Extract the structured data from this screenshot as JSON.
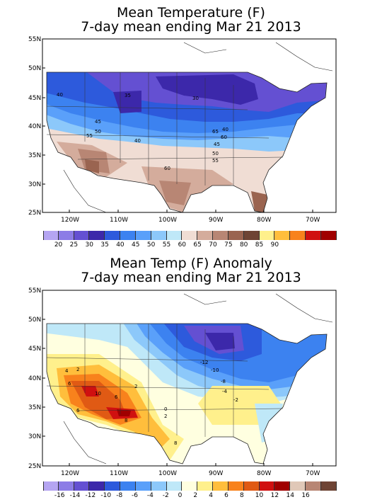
{
  "panels": [
    {
      "title_line1": "Mean Temperature (F)",
      "title_line2": "7-day mean ending Mar 21 2013",
      "lat_labels": [
        "55N",
        "50N",
        "45N",
        "40N",
        "35N",
        "30N",
        "25N"
      ],
      "lon_labels": [
        "120W",
        "110W",
        "100W",
        "90W",
        "80W",
        "70W"
      ],
      "contour_labels": [
        "40",
        "35",
        "30",
        "45",
        "50",
        "55",
        "60",
        "65",
        "40",
        "40",
        "45",
        "50",
        "55",
        "60"
      ],
      "colorbar_labels": [
        "20",
        "25",
        "30",
        "35",
        "40",
        "45",
        "50",
        "55",
        "60",
        "65",
        "70",
        "75",
        "80",
        "85",
        "90"
      ],
      "colors": [
        "#b5a5f2",
        "#8c7ce6",
        "#6450d2",
        "#3c28aa",
        "#2d5adc",
        "#3c82f0",
        "#5aa0fa",
        "#8cc8fa",
        "#bfe8f8",
        "#f0ddd4",
        "#d4ac9c",
        "#b88674",
        "#9a6450",
        "#6e4434",
        "#fff08c",
        "#ffbe3c",
        "#f8821c",
        "#d01010",
        "#a00000"
      ]
    },
    {
      "title_line1": "Mean Temp (F) Anomaly",
      "title_line2": "7-day mean ending Mar 21 2013",
      "lat_labels": [
        "55N",
        "50N",
        "45N",
        "40N",
        "35N",
        "30N",
        "25N"
      ],
      "lon_labels": [
        "120W",
        "110W",
        "100W",
        "90W",
        "80W",
        "70W"
      ],
      "contour_labels": [
        "-12",
        "-10",
        "-8",
        "-4",
        "-2",
        "2",
        "4",
        "6",
        "10",
        "6",
        "8",
        "6",
        "2",
        "0",
        "8",
        "2"
      ],
      "colorbar_labels": [
        "-16",
        "-14",
        "-12",
        "-10",
        "-8",
        "-6",
        "-4",
        "-2",
        "0",
        "2",
        "4",
        "6",
        "8",
        "10",
        "12",
        "14",
        "16"
      ],
      "colors": [
        "#b5a5f2",
        "#8c7ce6",
        "#6450d2",
        "#3c28aa",
        "#2d5adc",
        "#3c82f0",
        "#5aa0fa",
        "#8cc8fa",
        "#bfe8f8",
        "#ffffe0",
        "#fff08c",
        "#ffbe3c",
        "#f8821c",
        "#e05a14",
        "#d01010",
        "#a00000",
        "#e0c8b8",
        "#b88674",
        "#6e4434"
      ]
    }
  ]
}
